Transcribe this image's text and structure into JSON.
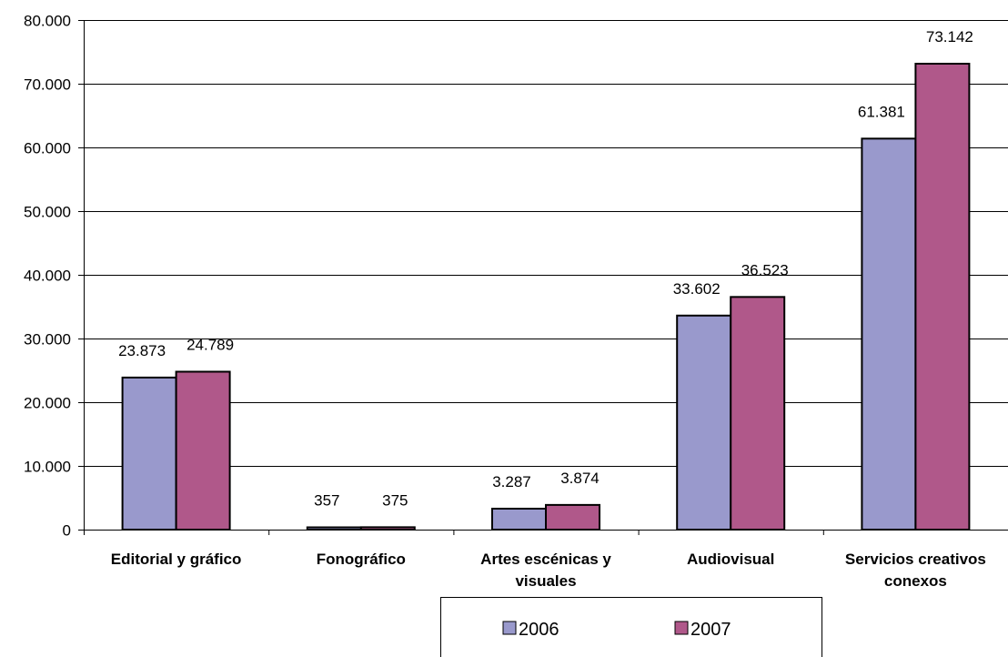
{
  "chart_data": {
    "type": "bar",
    "categories": [
      [
        "Editorial y gráfico"
      ],
      [
        "Fonográfico"
      ],
      [
        "Artes escénicas y",
        "visuales"
      ],
      [
        "Audiovisual"
      ],
      [
        "Servicios creativos",
        "conexos"
      ]
    ],
    "series": [
      {
        "name": "2006",
        "color": "#9999cc",
        "values": [
          23873,
          357,
          3287,
          33602,
          61381
        ],
        "labels": [
          "23.873",
          "357",
          "3.287",
          "33.602",
          "61.381"
        ]
      },
      {
        "name": "2007",
        "color": "#b0588a",
        "values": [
          24789,
          375,
          3874,
          36523,
          73142
        ],
        "labels": [
          "24.789",
          "375",
          "3.874",
          "36.523",
          "73.142"
        ]
      }
    ],
    "ylim": [
      0,
      80000
    ],
    "yticks": [
      0,
      10000,
      20000,
      30000,
      40000,
      50000,
      60000,
      70000,
      80000
    ],
    "ytick_labels": [
      "0",
      "10.000",
      "20.000",
      "30.000",
      "40.000",
      "50.000",
      "60.000",
      "70.000",
      "80.000"
    ],
    "grid": true,
    "legend_position": "bottom"
  }
}
